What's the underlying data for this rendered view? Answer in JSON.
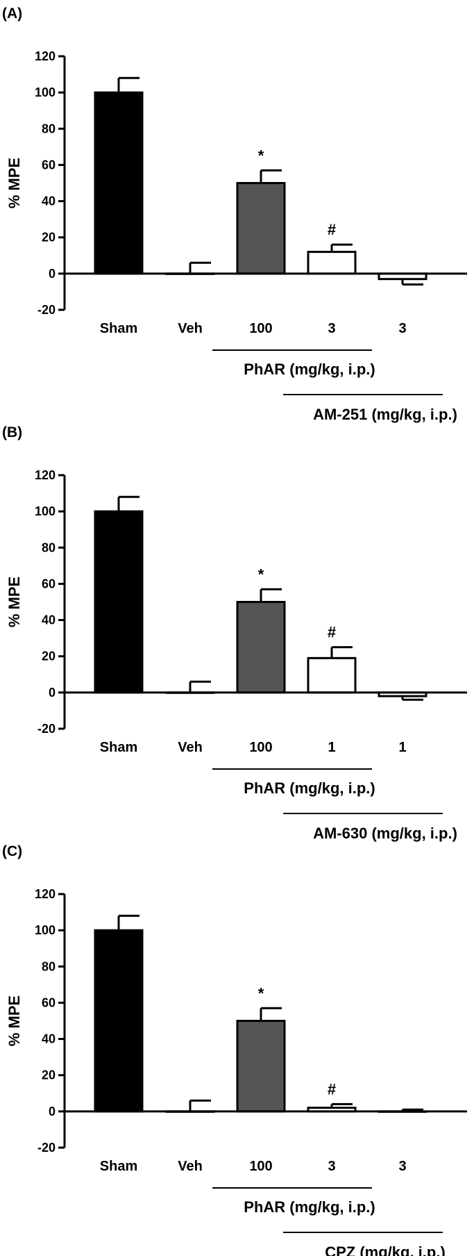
{
  "chart_data": [
    {
      "panel": "(A)",
      "type": "bar",
      "ylabel": "% MPE",
      "ylim": [
        -20,
        120
      ],
      "yticks": [
        -20,
        0,
        20,
        40,
        60,
        80,
        100,
        120
      ],
      "categories": [
        "Sham",
        "Veh",
        "100",
        "3",
        "3"
      ],
      "values": [
        100,
        0,
        50,
        12,
        -3
      ],
      "errors": [
        8,
        6,
        7,
        4,
        3
      ],
      "fills": [
        "#000000",
        "#ffffff",
        "#555555",
        "#ffffff",
        "#ffffff"
      ],
      "annotations": [
        "",
        "",
        "*",
        "#",
        ""
      ],
      "groups": [
        {
          "label": "PhAR (mg/kg, i.p.)",
          "from": 2,
          "to": 3
        },
        {
          "label": "AM-251 (mg/kg, i.p.)",
          "from": 3,
          "to": 4
        }
      ]
    },
    {
      "panel": "(B)",
      "type": "bar",
      "ylabel": "% MPE",
      "ylim": [
        -20,
        120
      ],
      "yticks": [
        -20,
        0,
        20,
        40,
        60,
        80,
        100,
        120
      ],
      "categories": [
        "Sham",
        "Veh",
        "100",
        "1",
        "1"
      ],
      "values": [
        100,
        0,
        50,
        19,
        -2
      ],
      "errors": [
        8,
        6,
        7,
        6,
        2
      ],
      "fills": [
        "#000000",
        "#ffffff",
        "#555555",
        "#ffffff",
        "#ffffff"
      ],
      "annotations": [
        "",
        "",
        "*",
        "#",
        ""
      ],
      "groups": [
        {
          "label": "PhAR (mg/kg, i.p.)",
          "from": 2,
          "to": 3
        },
        {
          "label": "AM-630 (mg/kg, i.p.)",
          "from": 3,
          "to": 4
        }
      ]
    },
    {
      "panel": "(C)",
      "type": "bar",
      "ylabel": "% MPE",
      "ylim": [
        -20,
        120
      ],
      "yticks": [
        -20,
        0,
        20,
        40,
        60,
        80,
        100,
        120
      ],
      "categories": [
        "Sham",
        "Veh",
        "100",
        "3",
        "3"
      ],
      "values": [
        100,
        0,
        50,
        2,
        0
      ],
      "errors": [
        8,
        6,
        7,
        2,
        1
      ],
      "fills": [
        "#000000",
        "#ffffff",
        "#555555",
        "#ffffff",
        "#ffffff"
      ],
      "annotations": [
        "",
        "",
        "*",
        "#",
        ""
      ],
      "groups": [
        {
          "label": "PhAR (mg/kg, i.p.)",
          "from": 2,
          "to": 3
        },
        {
          "label": "CPZ (mg/kg, i.p.)",
          "from": 3,
          "to": 4
        }
      ]
    }
  ]
}
